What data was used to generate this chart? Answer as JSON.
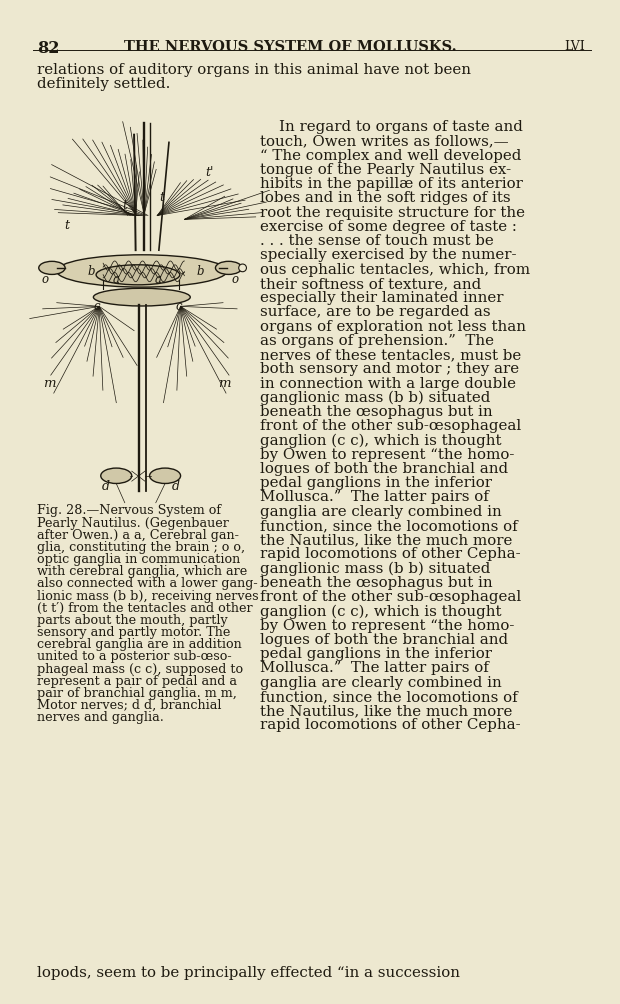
{
  "bg_color": "#ede8d0",
  "page_number": "82",
  "header": "THE NERVOUS SYSTEM OF MOLLUSKS.",
  "header_right": "LVI",
  "full_width_line1": "relations of auditory organs in this animal have not been",
  "full_width_line2": "definitely settled.",
  "right_col_lines": [
    "    In regard to organs of taste and",
    "touch, Owen writes as follows,—",
    "“ The complex and well developed",
    "tongue of the Pearly Nautilus ex-",
    "hibits in the papillæ of its anterior",
    "lobes and in the soft ridges of its",
    "root the requisite structure for the",
    "exercise of some degree of taste :",
    ". . . the sense of touch must be",
    "specially exercised by the numer-",
    "ous cephalic tentacles, which, from",
    "their softness of texture, and",
    "especially their laminated inner",
    "surface, are to be regarded as",
    "organs of exploration not less than",
    "as organs of prehension.”  The",
    "nerves of these tentacles, must be",
    "both sensory and motor ; they are",
    "in connection with a large double",
    "ganglionic mass (b b) situated",
    "beneath the œsophagus but in",
    "front of the other sub-œsophageal",
    "ganglion (c c), which is thought",
    "by Owen to represent “the homo-",
    "logues of both the branchial and",
    "pedal ganglions in the inferior",
    "Mollusca.”  The latter pairs of",
    "ganglia are clearly combined in",
    "function, since the locomotions of",
    "the Nautilus, like the much more",
    "rapid locomotions of other Cepha-"
  ],
  "caption_lines": [
    "Fig. 28.—Nervous System of",
    "Pearly Nautilus. (Gegenbauer",
    "after Owen.) a a, Cerebral gan-",
    "glia, constituting the brain ; o o,",
    "optic ganglia in communication",
    "with cerebral ganglia, which are",
    "also connected with a lower gang-",
    "lionic mass (b b), receiving nerves",
    "(t t′) from the tentacles and other",
    "parts about the mouth, partly",
    "sensory and partly motor. The",
    "cerebral ganglia are in addition",
    "united to a posterior sub-œso-",
    "phageal mass (c c), supposed to",
    "represent a pair of pedal and a",
    "pair of branchial ganglia. m m,",
    "Motor nerves; d d, branchial",
    "nerves and ganglia."
  ],
  "bottom_line": "lopods, seem to be principally effected “in a succession",
  "dark": "#1e1a10",
  "text_color": "#1e1a10"
}
